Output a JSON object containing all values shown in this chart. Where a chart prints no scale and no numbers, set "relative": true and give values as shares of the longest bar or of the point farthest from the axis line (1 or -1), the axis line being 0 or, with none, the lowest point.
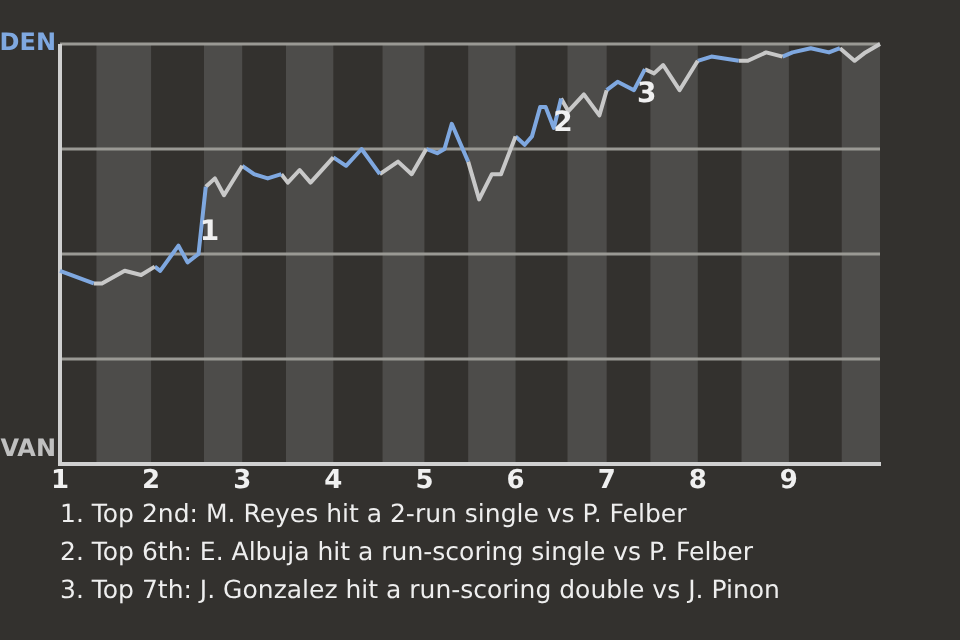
{
  "chart_data": {
    "type": "line",
    "relative": true,
    "xlim": [
      1,
      10
    ],
    "xticks": [
      1,
      2,
      3,
      4,
      5,
      6,
      7,
      8,
      9
    ],
    "grid": "y",
    "series": [
      {
        "color": "#7fa8e0",
        "x": [
          1.0,
          1.37
        ],
        "values": [
          0.46,
          0.43
        ]
      },
      {
        "color": "#c8c8c8",
        "x": [
          1.37,
          1.46,
          1.71,
          1.89,
          2.04
        ],
        "values": [
          0.43,
          0.43,
          0.46,
          0.45,
          0.47
        ]
      },
      {
        "color": "#7fa8e0",
        "x": [
          2.04,
          2.1,
          2.3,
          2.4,
          2.52,
          2.6
        ],
        "values": [
          0.47,
          0.46,
          0.52,
          0.48,
          0.5,
          0.66
        ]
      },
      {
        "color": "#c8c8c8",
        "x": [
          2.6,
          2.7,
          2.8,
          3.0
        ],
        "values": [
          0.66,
          0.68,
          0.64,
          0.71
        ]
      },
      {
        "color": "#7fa8e0",
        "x": [
          3.0,
          3.13,
          3.28,
          3.43
        ],
        "values": [
          0.71,
          0.69,
          0.68,
          0.69
        ]
      },
      {
        "color": "#c8c8c8",
        "x": [
          3.43,
          3.5,
          3.63,
          3.75,
          4.0
        ],
        "values": [
          0.69,
          0.67,
          0.7,
          0.67,
          0.73
        ]
      },
      {
        "color": "#7fa8e0",
        "x": [
          4.0,
          4.14,
          4.31,
          4.51
        ],
        "values": [
          0.73,
          0.71,
          0.75,
          0.69
        ]
      },
      {
        "color": "#c8c8c8",
        "x": [
          4.51,
          4.71,
          4.86,
          5.02
        ],
        "values": [
          0.69,
          0.72,
          0.69,
          0.75
        ]
      },
      {
        "color": "#7fa8e0",
        "x": [
          5.02,
          5.14,
          5.22,
          5.3,
          5.48
        ],
        "values": [
          0.75,
          0.74,
          0.75,
          0.81,
          0.72
        ]
      },
      {
        "color": "#c8c8c8",
        "x": [
          5.48,
          5.6,
          5.74,
          5.84,
          6.0
        ],
        "values": [
          0.72,
          0.63,
          0.69,
          0.69,
          0.78
        ]
      },
      {
        "color": "#7fa8e0",
        "x": [
          6.0,
          6.1,
          6.18,
          6.27,
          6.33,
          6.42,
          6.5
        ],
        "values": [
          0.78,
          0.76,
          0.78,
          0.85,
          0.85,
          0.8,
          0.87
        ]
      },
      {
        "color": "#c8c8c8",
        "x": [
          6.5,
          6.58,
          6.75,
          6.92,
          7.0
        ],
        "values": [
          0.87,
          0.84,
          0.88,
          0.83,
          0.89
        ]
      },
      {
        "color": "#7fa8e0",
        "x": [
          7.0,
          7.12,
          7.3,
          7.42
        ],
        "values": [
          0.89,
          0.91,
          0.89,
          0.94
        ]
      },
      {
        "color": "#c8c8c8",
        "x": [
          7.42,
          7.52,
          7.62,
          7.8,
          8.0
        ],
        "values": [
          0.94,
          0.93,
          0.95,
          0.89,
          0.96
        ]
      },
      {
        "color": "#7fa8e0",
        "x": [
          8.0,
          8.15,
          8.45
        ],
        "values": [
          0.96,
          0.97,
          0.96
        ]
      },
      {
        "color": "#c8c8c8",
        "x": [
          8.45,
          8.55,
          8.75,
          8.93
        ],
        "values": [
          0.96,
          0.96,
          0.98,
          0.97
        ]
      },
      {
        "color": "#7fa8e0",
        "x": [
          8.93,
          9.04,
          9.24,
          9.44,
          9.56
        ],
        "values": [
          0.97,
          0.98,
          0.99,
          0.98,
          0.99
        ]
      },
      {
        "color": "#c8c8c8",
        "x": [
          9.56,
          9.72,
          9.84,
          10.0
        ],
        "values": [
          0.99,
          0.96,
          0.98,
          1.0
        ]
      }
    ],
    "bands": [
      {
        "axis": "x",
        "from": 1.4,
        "to": 2,
        "color": "#4d4c4a"
      },
      {
        "axis": "x",
        "from": 2.58,
        "to": 3,
        "color": "#4d4c4a"
      },
      {
        "axis": "x",
        "from": 3.48,
        "to": 4,
        "color": "#4d4c4a"
      },
      {
        "axis": "x",
        "from": 4.54,
        "to": 5,
        "color": "#4d4c4a"
      },
      {
        "axis": "x",
        "from": 5.48,
        "to": 6,
        "color": "#4d4c4a"
      },
      {
        "axis": "x",
        "from": 6.57,
        "to": 7,
        "color": "#4d4c4a"
      },
      {
        "axis": "x",
        "from": 7.48,
        "to": 8,
        "color": "#4d4c4a"
      },
      {
        "axis": "x",
        "from": 8.48,
        "to": 9,
        "color": "#4d4c4a"
      },
      {
        "axis": "x",
        "from": 9.58,
        "to": 10,
        "color": "#4d4c4a"
      }
    ],
    "annotations": [
      "DEN",
      "VAN",
      {
        "text": "1",
        "x": 2.64,
        "y": 0.55
      },
      {
        "text": "2",
        "x": 6.52,
        "y": 0.81
      },
      {
        "text": "3",
        "x": 7.44,
        "y": 0.88
      },
      "1. Top 2nd: M. Reyes hit a 2-run single vs P. Felber",
      "2. Top 6th: E. Albuja hit a run-scoring single vs P. Felber",
      "3. Top 7th: J. Gonzalez hit a run-scoring double vs J. Pinon"
    ]
  }
}
